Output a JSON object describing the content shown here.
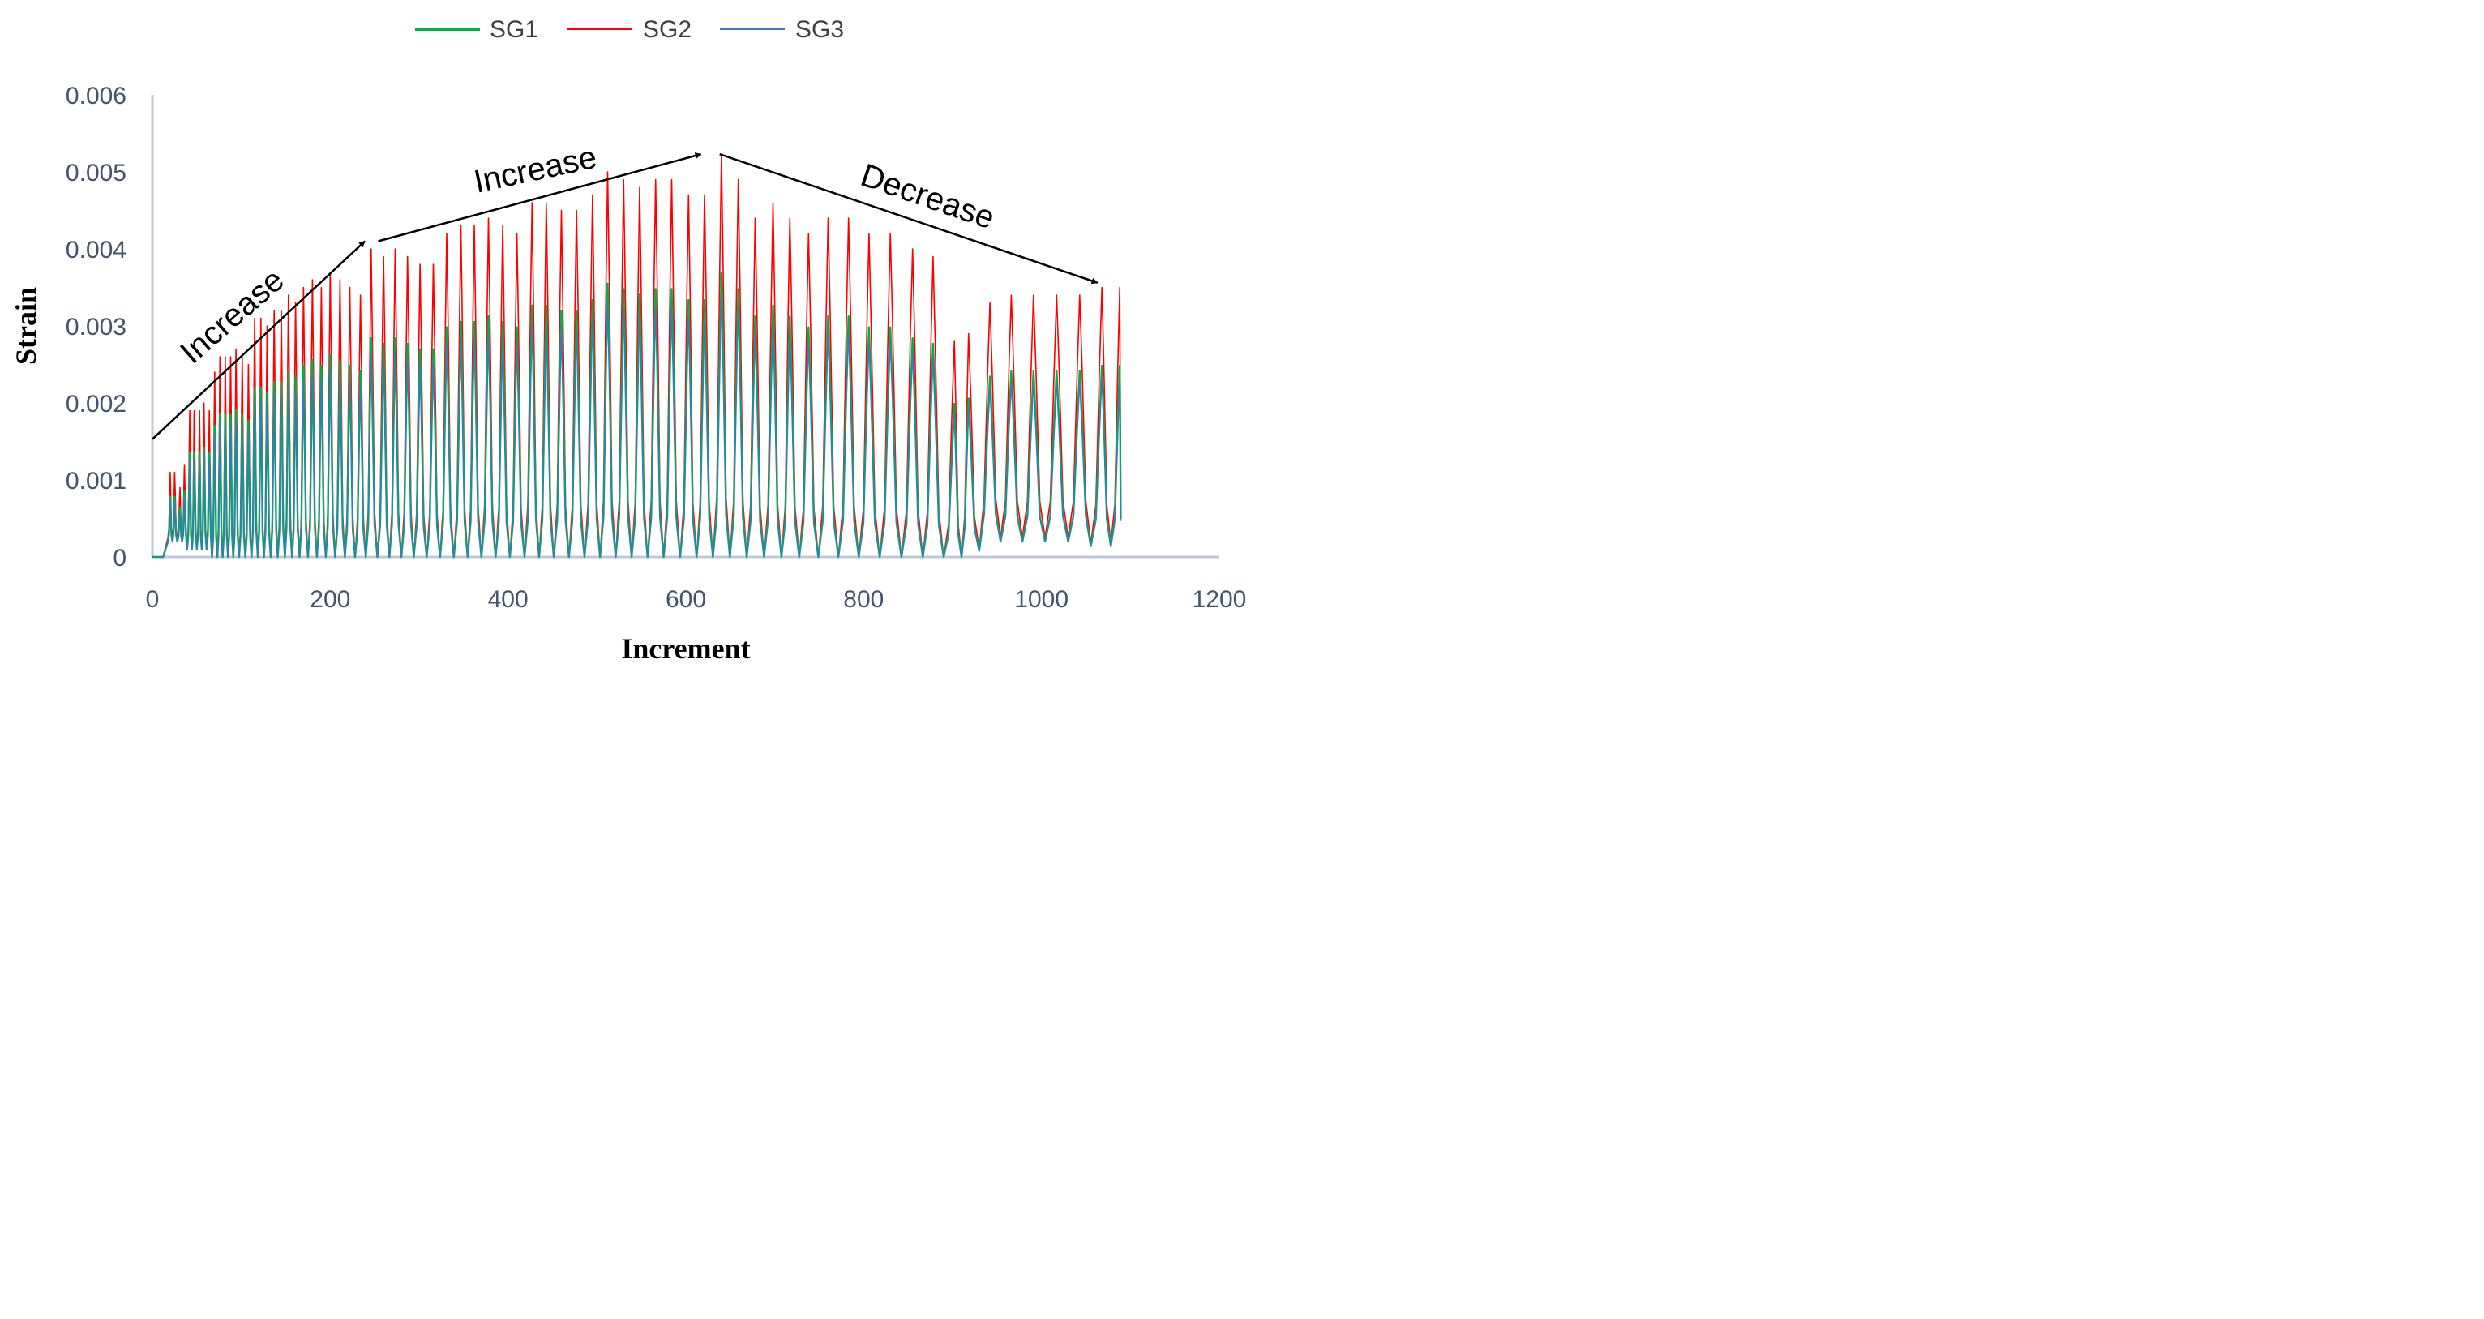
{
  "chart_data": {
    "type": "line",
    "title": "",
    "xlabel": "Increment",
    "ylabel": "Strain",
    "xlim": [
      0,
      1200
    ],
    "ylim": [
      0,
      0.006
    ],
    "x_ticks": [
      0,
      200,
      400,
      600,
      800,
      1000,
      1200
    ],
    "x_tick_labels": [
      "0",
      "200",
      "400",
      "600",
      "800",
      "1000",
      "1200"
    ],
    "y_ticks": [
      0,
      0.001,
      0.002,
      0.003,
      0.004,
      0.005,
      0.006
    ],
    "y_tick_labels": [
      "0",
      "0.001",
      "0.002",
      "0.003",
      "0.004",
      "0.005",
      "0.006"
    ],
    "legend_position": "top-center",
    "series": [
      {
        "name": "SG1",
        "color": "#00B050",
        "cycle_peak_scale": 0.71,
        "cycle_trough_scale": 1.0
      },
      {
        "name": "SG2",
        "color": "#FF0000",
        "cycle_peak_scale": 1.0,
        "cycle_trough_scale": 1.25
      },
      {
        "name": "SG3",
        "color": "#4472C4",
        "cycle_peak_scale": 0.66,
        "cycle_trough_scale": 1.0
      }
    ],
    "cycles": {
      "center_increment": [
        20,
        25,
        31,
        36,
        42,
        47,
        53,
        58,
        64,
        70,
        76,
        82,
        88,
        94,
        101,
        108,
        115,
        122,
        129,
        137,
        145,
        153,
        161,
        170,
        180,
        190,
        200,
        211,
        222,
        234,
        246,
        260,
        273,
        287,
        301,
        316,
        331,
        347,
        362,
        378,
        394,
        410,
        427,
        443,
        460,
        477,
        495,
        512,
        530,
        548,
        566,
        584,
        603,
        621,
        640,
        659,
        678,
        698,
        717,
        738,
        760,
        783,
        806,
        830,
        855,
        878,
        902,
        918,
        942,
        966,
        991,
        1017,
        1043,
        1068,
        1088
      ],
      "peak_strain_sg2": [
        0.0011,
        0.0011,
        0.0009,
        0.0012,
        0.0019,
        0.0019,
        0.0019,
        0.002,
        0.0019,
        0.0024,
        0.0026,
        0.0026,
        0.0026,
        0.0027,
        0.0026,
        0.0025,
        0.0031,
        0.0031,
        0.003,
        0.0032,
        0.0032,
        0.0034,
        0.0033,
        0.0035,
        0.0036,
        0.0035,
        0.0037,
        0.0036,
        0.0035,
        0.0034,
        0.004,
        0.0039,
        0.004,
        0.0039,
        0.0038,
        0.0038,
        0.0042,
        0.0043,
        0.0043,
        0.0044,
        0.0043,
        0.0042,
        0.0046,
        0.0046,
        0.0045,
        0.0045,
        0.0047,
        0.005,
        0.0049,
        0.0048,
        0.0049,
        0.0049,
        0.0047,
        0.0047,
        0.0052,
        0.0049,
        0.0044,
        0.0046,
        0.0044,
        0.0042,
        0.0044,
        0.0044,
        0.0042,
        0.0042,
        0.004,
        0.0039,
        0.0028,
        0.0029,
        0.0033,
        0.0034,
        0.0034,
        0.0034,
        0.0034,
        0.0035,
        0.0035
      ],
      "trough_strain_sg2": [
        0.0002,
        0.0002,
        0.0002,
        0.0002,
        0.0001,
        0.0001,
        0.0001,
        0.0001,
        0.0001,
        0.0,
        0.0,
        0.0,
        0.0,
        0.0,
        0.0,
        0.0,
        0.0,
        0.0,
        0.0,
        0.0,
        0.0,
        0.0,
        0.0,
        0.0,
        0.0,
        0.0,
        0.0,
        0.0,
        0.0,
        0.0,
        0.0,
        0.0,
        0.0,
        0.0,
        0.0,
        0.0,
        0.0,
        0.0,
        0.0,
        0.0,
        0.0,
        0.0,
        0.0,
        0.0,
        0.0,
        0.0,
        0.0,
        0.0,
        0.0,
        0.0,
        0.0,
        0.0,
        0.0,
        0.0,
        0.0,
        0.0,
        0.0,
        0.0,
        0.0,
        0.0,
        0.0,
        0.0,
        0.0,
        0.0,
        0.0,
        0.0,
        0.0,
        8e-05,
        0.00024,
        0.0002,
        0.0002,
        0.0002,
        0.0002,
        0.00014,
        0.00014
      ]
    },
    "annotations": [
      {
        "text": "Increase",
        "from": [
          0,
          0.00153
        ],
        "to": [
          239,
          0.0041
        ]
      },
      {
        "text": "Increase",
        "from": [
          254,
          0.0041
        ],
        "to": [
          617,
          0.00523
        ]
      },
      {
        "text": "Decrease",
        "from": [
          638,
          0.00523
        ],
        "to": [
          1063,
          0.00356
        ]
      }
    ]
  }
}
